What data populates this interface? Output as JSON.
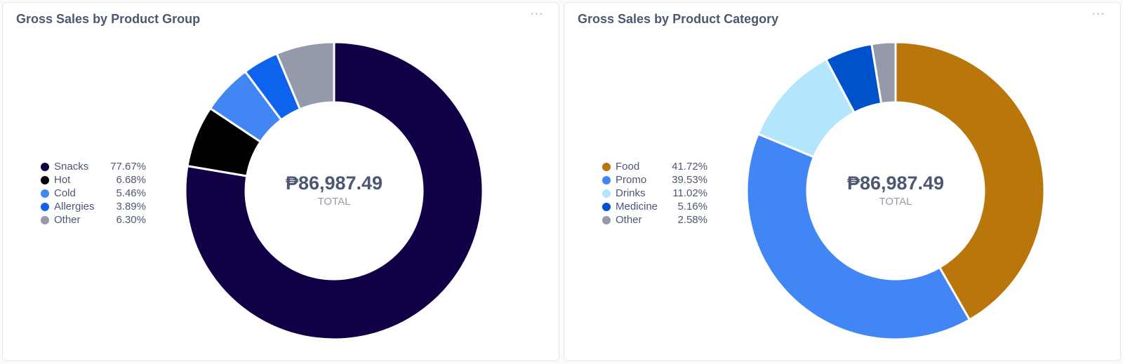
{
  "chart_data": [
    {
      "type": "pie",
      "title": "Gross Sales by Product Group",
      "menu_label": "···",
      "total": "₱86,987.49",
      "total_label": "TOTAL",
      "slices": [
        {
          "label": "Snacks",
          "value": 77.67,
          "display": "77.67%",
          "color": "#110046"
        },
        {
          "label": "Hot",
          "value": 6.68,
          "display": "6.68%",
          "color": "#000000"
        },
        {
          "label": "Cold",
          "value": 5.46,
          "display": "5.46%",
          "color": "#4285f4"
        },
        {
          "label": "Allergies",
          "value": 3.89,
          "display": "3.89%",
          "color": "#0d63ee"
        },
        {
          "label": "Other",
          "value": 6.3,
          "display": "6.30%",
          "color": "#949aab"
        }
      ]
    },
    {
      "type": "pie",
      "title": "Gross Sales by Product Category",
      "menu_label": "···",
      "total": "₱86,987.49",
      "total_label": "TOTAL",
      "slices": [
        {
          "label": "Food",
          "value": 41.72,
          "display": "41.72%",
          "color": "#b8760b"
        },
        {
          "label": "Promo",
          "value": 39.53,
          "display": "39.53%",
          "color": "#4285f4"
        },
        {
          "label": "Drinks",
          "value": 11.02,
          "display": "11.02%",
          "color": "#b3e5fc"
        },
        {
          "label": "Medicine",
          "value": 5.16,
          "display": "5.16%",
          "color": "#0052cc"
        },
        {
          "label": "Other",
          "value": 2.58,
          "display": "2.58%",
          "color": "#949aab"
        }
      ]
    }
  ]
}
